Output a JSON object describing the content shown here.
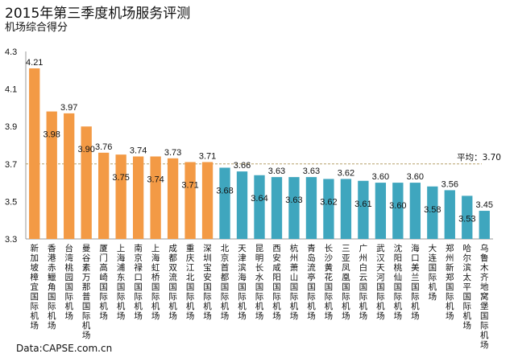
{
  "title": "2015年第三季度机场服务评测",
  "subtitle": "机场综合得分",
  "source": "Data:CAPSE.com.cn",
  "chart_data": {
    "type": "bar",
    "title": "2015年第三季度机场服务评测",
    "subtitle": "机场综合得分",
    "ylim": [
      3.3,
      4.3
    ],
    "yticks": [
      "3.3",
      "3.5",
      "3.7",
      "3.9",
      "4.1",
      "4.3"
    ],
    "grid": false,
    "categories": [
      "新加坡樟宜国际机场",
      "香港赤鱲角国际机场",
      "台湾桃园国际机场",
      "曼谷素万那普国际机场",
      "厦门高崎国际机场",
      "上海浦东国际机场",
      "南京禄口国际机场",
      "上海虹桥国际机场",
      "成都双流国际机场",
      "重庆江北国际机场",
      "深圳宝安国际机场",
      "北京首都国际机场",
      "天津滨海国际机场",
      "昆明长水国际机场",
      "西安咸阳国际机场",
      "杭州萧山国际机场",
      "青岛流亭国际机场",
      "长沙黄花国际机场",
      "三亚凤凰国际机场",
      "广州白云国际机场",
      "武汉天河国际机场",
      "沈阳桃仙国际机场",
      "海口美兰国际机场",
      "大连国际机场",
      "郑州新郑国际机场",
      "哈尔滨太平国际机场",
      "乌鲁木齐地窝堡国际机场"
    ],
    "values": [
      4.21,
      3.98,
      3.97,
      3.9,
      3.76,
      3.75,
      3.74,
      3.74,
      3.73,
      3.71,
      3.71,
      3.68,
      3.66,
      3.64,
      3.63,
      3.63,
      3.63,
      3.62,
      3.62,
      3.61,
      3.6,
      3.6,
      3.6,
      3.58,
      3.56,
      3.53,
      3.45
    ],
    "colors": [
      "#F39A45",
      "#F39A45",
      "#F39A45",
      "#F39A45",
      "#F39A45",
      "#F39A45",
      "#F39A45",
      "#F39A45",
      "#F39A45",
      "#F39A45",
      "#F39A45",
      "#3FA6BE",
      "#3FA6BE",
      "#3FA6BE",
      "#3FA6BE",
      "#3FA6BE",
      "#3FA6BE",
      "#3FA6BE",
      "#3FA6BE",
      "#3FA6BE",
      "#3FA6BE",
      "#3FA6BE",
      "#3FA6BE",
      "#3FA6BE",
      "#3FA6BE",
      "#3FA6BE",
      "#3FA6BE"
    ],
    "average": {
      "value": 3.7,
      "label": "平均：3.70",
      "color": "#B5A06A"
    }
  }
}
